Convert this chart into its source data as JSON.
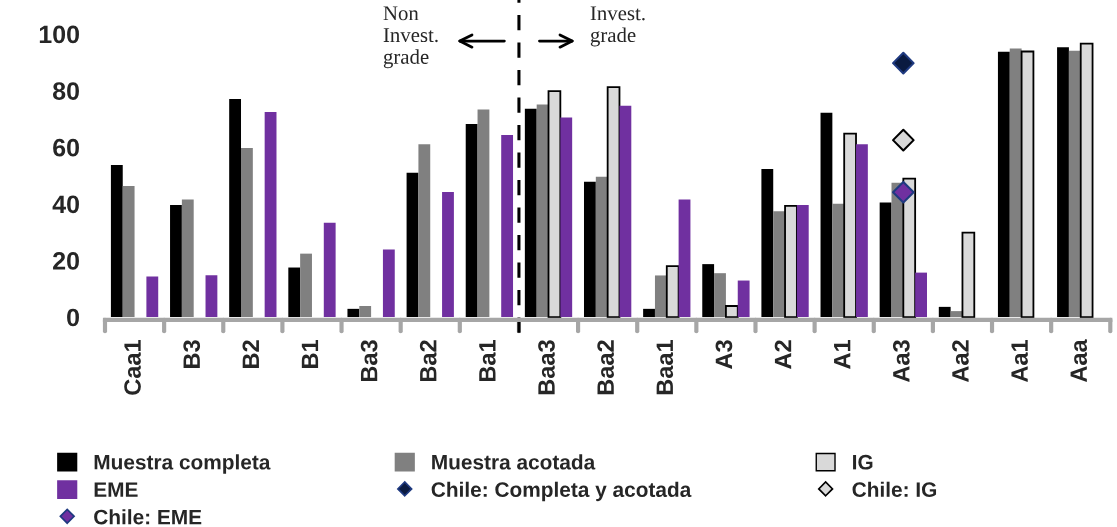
{
  "chart_data": {
    "type": "bar",
    "categories": [
      "Caa1",
      "B3",
      "B2",
      "B1",
      "Ba3",
      "Ba2",
      "Ba1",
      "Baa3",
      "Baa2",
      "Baa1",
      "A3",
      "A2",
      "A1",
      "Aa3",
      "Aa2",
      "Aa1",
      "Aaa"
    ],
    "series": [
      {
        "name": "Muestra completa",
        "color": "#000000",
        "values": [
          53.7,
          39.6,
          77,
          17.5,
          2.9,
          51,
          68.2,
          73.6,
          47.8,
          2.9,
          18.7,
          52.3,
          72.2,
          40.5,
          3.6,
          93.7,
          95.3
        ]
      },
      {
        "name": "Muestra acotada",
        "color": "#808080",
        "values": [
          46.3,
          41.5,
          59.7,
          22.4,
          3.9,
          61,
          73.3,
          75.1,
          49.6,
          14.7,
          15.5,
          37.4,
          40,
          47.4,
          2.1,
          94.9,
          94.1
        ]
      },
      {
        "name": "IG",
        "color": "#d9d9d9",
        "values": [
          null,
          null,
          null,
          null,
          null,
          null,
          null,
          79.8,
          81.2,
          18,
          3.9,
          39.3,
          64.8,
          48.9,
          29.8,
          93.8,
          96.6
        ]
      },
      {
        "name": "EME",
        "color": "#7030a0",
        "values": [
          14.3,
          14.8,
          72.4,
          33.3,
          23.9,
          44.2,
          64.3,
          70.5,
          74.6,
          41.5,
          12.9,
          39.6,
          61,
          15.7,
          null,
          null,
          null
        ]
      },
      {
        "name": "Chile: Completa y acotada",
        "type": "scatter",
        "marker": "diamond",
        "color": "#0a1a40",
        "x": [
          "Aa3"
        ],
        "values": [
          89.7
        ]
      },
      {
        "name": "Chile: IG",
        "type": "scatter",
        "marker": "diamond",
        "color": "#d9d9d9",
        "x": [
          "Aa3"
        ],
        "values": [
          62.5
        ]
      },
      {
        "name": "Chile: EME",
        "type": "scatter",
        "marker": "diamond",
        "color": "#7030a0",
        "x": [
          "Aa3"
        ],
        "values": [
          44.1
        ]
      }
    ],
    "ylim": [
      -1,
      112
    ],
    "yticks": [
      0,
      20,
      40,
      60,
      80,
      100
    ],
    "annotations": [
      "Non\nInvest.\ngrade",
      "Invest.\ngrade"
    ],
    "grid": false,
    "legend": "bottom"
  }
}
